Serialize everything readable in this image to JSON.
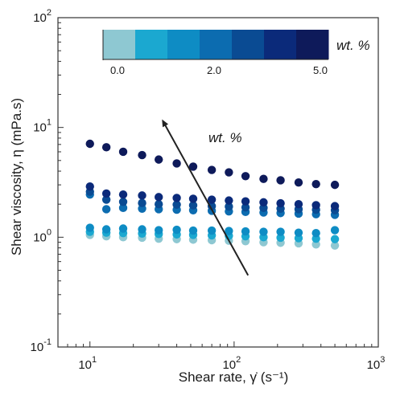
{
  "chart_data": {
    "type": "scatter",
    "xlabel": "Shear rate, γ̇ (s⁻¹)",
    "ylabel": "Shear viscosity, η (mPa.s)",
    "x_scale": "log",
    "y_scale": "log",
    "xlim": [
      6,
      1000
    ],
    "ylim": [
      0.1,
      100
    ],
    "x_ticks": [
      {
        "value": 10,
        "base": "10",
        "exp": "1"
      },
      {
        "value": 100,
        "base": "10",
        "exp": "2"
      },
      {
        "value": 1000,
        "base": "10",
        "exp": "3"
      }
    ],
    "y_ticks": [
      {
        "value": 0.1,
        "base": "10",
        "exp": "-1"
      },
      {
        "value": 1,
        "base": "10",
        "exp": "0"
      },
      {
        "value": 10,
        "base": "10",
        "exp": "1"
      },
      {
        "value": 100,
        "base": "10",
        "exp": "2"
      }
    ],
    "grid": false,
    "colorbar": {
      "title": "wt. %",
      "colors": [
        "#8ec8d2",
        "#1ba8d0",
        "#0e8cc4",
        "#0c6cb0",
        "#0a4b93",
        "#0b2a7a",
        "#0e1a5a"
      ],
      "tick_labels": [
        "0.0",
        "2.0",
        "5.0"
      ]
    },
    "annotation": {
      "text": "wt. %",
      "arrow_from": [
        125,
        0.45
      ],
      "arrow_to": [
        32,
        11.5
      ]
    },
    "x": [
      10,
      13,
      17,
      23,
      30,
      40,
      52,
      70,
      92,
      120,
      160,
      210,
      280,
      370,
      500
    ],
    "series": [
      {
        "color": "#8ec8d2",
        "values": [
          1.05,
          1.02,
          1.0,
          0.99,
          0.97,
          0.96,
          0.95,
          0.94,
          0.93,
          0.92,
          0.9,
          0.89,
          0.88,
          0.86,
          0.84
        ]
      },
      {
        "color": "#1ba8d0",
        "values": [
          1.12,
          1.1,
          1.09,
          1.08,
          1.07,
          1.06,
          1.05,
          1.04,
          1.03,
          1.02,
          1.0,
          0.99,
          0.98,
          0.97,
          0.96
        ]
      },
      {
        "color": "#0e8cc4",
        "values": [
          1.22,
          1.18,
          1.2,
          1.18,
          1.16,
          1.17,
          1.15,
          1.15,
          1.14,
          1.13,
          1.12,
          1.12,
          1.1,
          1.09,
          1.16
        ]
      },
      {
        "color": "#0c6cb0",
        "values": [
          2.45,
          1.8,
          1.85,
          1.82,
          1.8,
          1.78,
          1.76,
          1.74,
          1.72,
          1.7,
          1.68,
          1.66,
          1.64,
          1.62,
          1.6
        ]
      },
      {
        "color": "#0a4b93",
        "values": [
          2.6,
          2.2,
          2.1,
          2.05,
          2.0,
          1.98,
          1.95,
          1.92,
          1.9,
          1.87,
          1.85,
          1.82,
          1.8,
          1.78,
          1.76
        ]
      },
      {
        "color": "#0b2a7a",
        "values": [
          2.9,
          2.5,
          2.45,
          2.4,
          2.32,
          2.28,
          2.24,
          2.2,
          2.16,
          2.12,
          2.08,
          2.04,
          2.0,
          1.96,
          1.92
        ]
      },
      {
        "color": "#0e1a5a",
        "values": [
          7.1,
          6.6,
          6.0,
          5.6,
          5.1,
          4.7,
          4.4,
          4.1,
          3.9,
          3.6,
          3.4,
          3.3,
          3.15,
          3.05,
          3.0
        ]
      }
    ]
  }
}
